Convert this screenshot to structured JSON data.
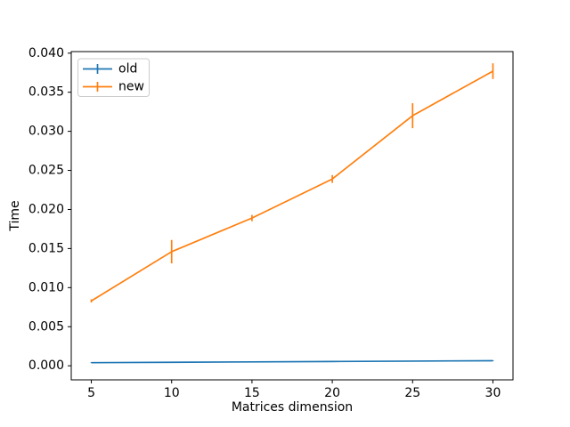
{
  "chart_data": {
    "type": "line",
    "title": "",
    "xlabel": "Matrices dimension",
    "ylabel": "Time",
    "x": [
      5,
      10,
      15,
      20,
      25,
      30
    ],
    "series": [
      {
        "name": "old",
        "color": "#1f77b4",
        "values": [
          0.0004,
          0.00045,
          0.0005,
          0.00055,
          0.0006,
          0.00065
        ],
        "yerr": [
          5e-05,
          5e-05,
          5e-05,
          5e-05,
          5e-05,
          5e-05
        ]
      },
      {
        "name": "new",
        "color": "#ff7f0e",
        "values": [
          0.0083,
          0.0146,
          0.0189,
          0.0239,
          0.032,
          0.0377
        ],
        "yerr": [
          0.0002,
          0.0015,
          0.0004,
          0.0005,
          0.0016,
          0.001
        ]
      }
    ],
    "xlim": [
      3.75,
      31.25
    ],
    "ylim": [
      -0.0018,
      0.0402
    ],
    "x_tick_values": [
      5,
      10,
      15,
      20,
      25,
      30
    ],
    "x_tick_labels": [
      "5",
      "10",
      "15",
      "20",
      "25",
      "30"
    ],
    "y_tick_values": [
      0.0,
      0.005,
      0.01,
      0.015,
      0.02,
      0.025,
      0.03,
      0.035,
      0.04
    ],
    "y_tick_labels": [
      "0.000",
      "0.005",
      "0.010",
      "0.015",
      "0.020",
      "0.025",
      "0.030",
      "0.035",
      "0.040"
    ],
    "grid": false,
    "legend": {
      "position": "upper-left",
      "entries": [
        "old",
        "new"
      ],
      "border_color": "#cccccc",
      "background": "#ffffff"
    },
    "background": "#ffffff",
    "spine_color": "#000000",
    "text_color": "#000000"
  }
}
